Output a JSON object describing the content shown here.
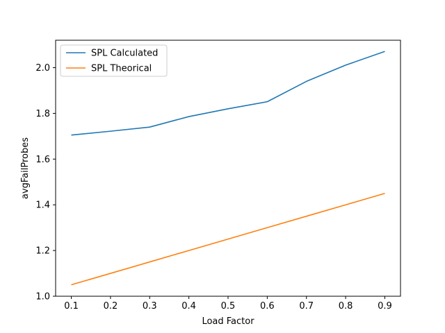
{
  "chart_data": {
    "type": "line",
    "title": "",
    "xlabel": "Load Factor",
    "ylabel": "avgFailProbes",
    "x": [
      0.1,
      0.2,
      0.3,
      0.4,
      0.5,
      0.6,
      0.7,
      0.8,
      0.9
    ],
    "xlim": [
      0.06,
      0.94
    ],
    "ylim": [
      1.0,
      2.12
    ],
    "x_ticks": [
      0.1,
      0.2,
      0.3,
      0.4,
      0.5,
      0.6,
      0.7,
      0.8,
      0.9
    ],
    "x_tick_labels": [
      "0.1",
      "0.2",
      "0.3",
      "0.4",
      "0.5",
      "0.6",
      "0.7",
      "0.8",
      "0.9"
    ],
    "y_ticks": [
      1.0,
      1.2,
      1.4,
      1.6,
      1.8,
      2.0
    ],
    "y_tick_labels": [
      "1.0",
      "1.2",
      "1.4",
      "1.6",
      "1.8",
      "2.0"
    ],
    "grid": false,
    "legend_position": "top-left",
    "series": [
      {
        "name": "SPL Calculated",
        "color": "#1f77b4",
        "values": [
          1.705,
          1.722,
          1.74,
          1.786,
          1.82,
          1.851,
          1.94,
          2.011,
          2.071
        ]
      },
      {
        "name": "SPL Theorical",
        "color": "#ff7f0e",
        "values": [
          1.05,
          1.1,
          1.15,
          1.2,
          1.25,
          1.3,
          1.35,
          1.4,
          1.45
        ]
      }
    ]
  }
}
